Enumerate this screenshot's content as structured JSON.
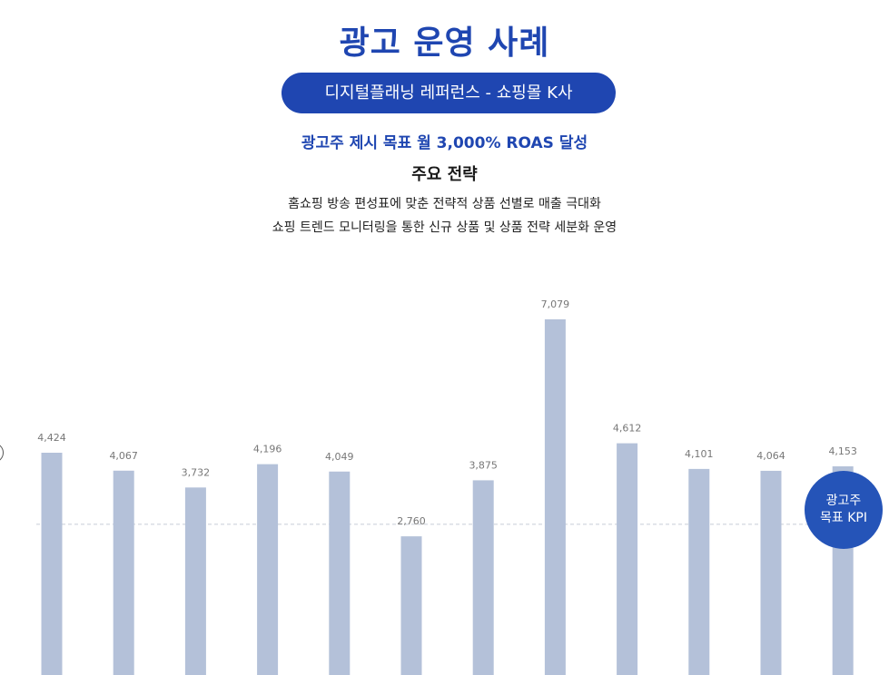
{
  "header": {
    "title": "광고 운영 사례",
    "pill": "디지털플래닝 레퍼런스 - 쇼핑몰 K사",
    "goal": "광고주 제시 목표 월 3,000% ROAS 달성",
    "strategy_title": "주요 전략",
    "strategy_lines": [
      "홈쇼핑 방송 편성표에 맞춘 전략적 상품 선별로 매출 극대화",
      "쇼핑 트렌드 모니터링을 통한 신규 상품 및 상품 전략 세분화 운영"
    ]
  },
  "kpi": {
    "line1": "광고주",
    "line2": "목표 KPI"
  },
  "colors": {
    "accent": "#1f46b1",
    "bar": "#b4c1d9",
    "label": "#777777",
    "kpi_line": "#c8cdd8"
  },
  "chart_data": {
    "type": "bar",
    "categories": [],
    "values": [
      4424,
      4067,
      3732,
      4196,
      4049,
      2760,
      3875,
      7079,
      4612,
      4101,
      4064,
      4153
    ],
    "labels": [
      "4,424",
      "4,067",
      "3,732",
      "4,196",
      "4,049",
      "2,760",
      "3,875",
      "7,079",
      "4,612",
      "4,101",
      "4,064",
      "4,153"
    ],
    "kpi_value": 3000,
    "title": "",
    "xlabel": "",
    "ylabel": "",
    "grid": false
  }
}
